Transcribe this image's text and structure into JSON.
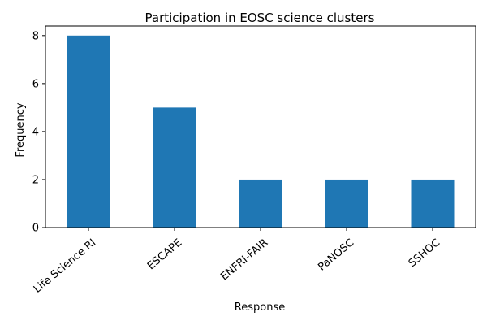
{
  "chart_data": {
    "type": "bar",
    "title": "Participation in EOSC science clusters",
    "xlabel": "Response",
    "ylabel": "Frequency",
    "categories": [
      "Life Science RI",
      "ESCAPE",
      "ENFRI-FAIR",
      "PaNOSC",
      "SSHOC"
    ],
    "values": [
      8,
      5,
      2,
      2,
      2
    ],
    "ylim": [
      0,
      8.4
    ],
    "yticks": [
      0,
      2,
      4,
      6,
      8
    ],
    "grid": false,
    "bar_color": "#1f77b4"
  }
}
